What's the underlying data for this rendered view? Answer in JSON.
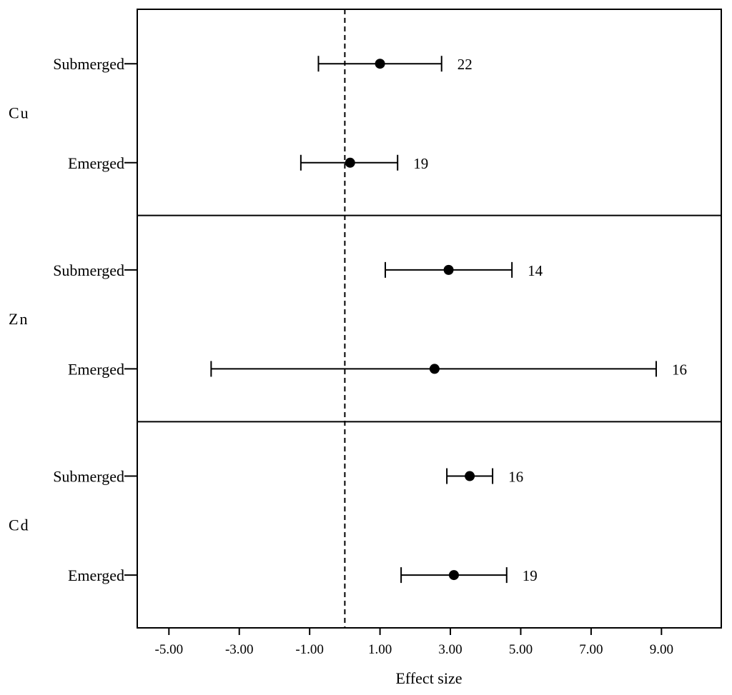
{
  "chart_data": {
    "type": "forest",
    "xlabel": "Effect size",
    "xlim": [
      -5.9,
      10.7
    ],
    "x_ticks": [
      -5,
      -3,
      -1,
      1,
      3,
      5,
      7,
      9
    ],
    "x_tick_labels": [
      "-5.00",
      "-3.00",
      "-1.00",
      "1.00",
      "3.00",
      "5.00",
      "7.00",
      "9.00"
    ],
    "reference_line": 0,
    "grid": false,
    "groups": [
      {
        "name": "Cu",
        "rows": [
          {
            "label": "Submerged",
            "estimate": 1.0,
            "ci_low": -0.75,
            "ci_high": 2.75,
            "n": "22"
          },
          {
            "label": "Emerged",
            "estimate": 0.15,
            "ci_low": -1.25,
            "ci_high": 1.5,
            "n": "19"
          }
        ]
      },
      {
        "name": "Zn",
        "rows": [
          {
            "label": "Submerged",
            "estimate": 2.95,
            "ci_low": 1.15,
            "ci_high": 4.75,
            "n": "14"
          },
          {
            "label": "Emerged",
            "estimate": 2.55,
            "ci_low": -3.8,
            "ci_high": 8.85,
            "n": "16"
          }
        ]
      },
      {
        "name": "Cd",
        "rows": [
          {
            "label": "Submerged",
            "estimate": 3.55,
            "ci_low": 2.9,
            "ci_high": 4.2,
            "n": "16"
          },
          {
            "label": "Emerged",
            "estimate": 3.1,
            "ci_low": 1.6,
            "ci_high": 4.6,
            "n": "19"
          }
        ]
      }
    ]
  }
}
